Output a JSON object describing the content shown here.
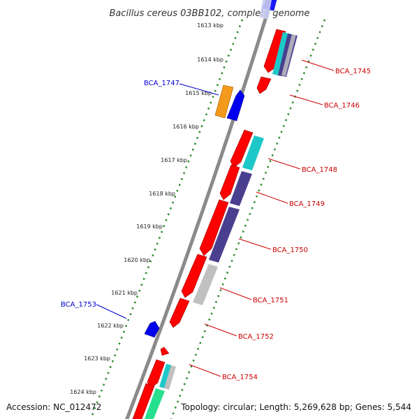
{
  "title": "Bacillus cereus 03BB102, complete genome",
  "footer": {
    "accession": "Accession: NC_012472",
    "summary": "Topology: circular; Length: 5,269,628 bp; Genes: 5,544"
  },
  "kbp_ticks": [
    "1613 kbp",
    "1614 kbp",
    "1615 kbp",
    "1616 kbp",
    "1617 kbp",
    "1618 kbp",
    "1619 kbp",
    "1620 kbp",
    "1621 kbp",
    "1622 kbp",
    "1623 kbp",
    "1624 kbp"
  ],
  "forward_labels": [
    "BCA_1745",
    "BCA_1746",
    "BCA_1748",
    "BCA_1749",
    "BCA_1750",
    "BCA_1751",
    "BCA_1752",
    "BCA_1754"
  ],
  "reverse_labels": [
    "BCA_1747",
    "BCA_1753"
  ],
  "colors": {
    "backbone": "#8a8a8a",
    "cds": "#ff0000",
    "forward_label": "#cc0000",
    "reverse_label": "#0000cc",
    "reverse_gene": "#0000ee",
    "orange_gene": "#f39a1d",
    "cyan_gene": "#1fc8c8",
    "purple_gene": "#4a3f8f",
    "gray_gene": "#c0c0c0",
    "green_gene": "#27e08f",
    "tick_dots": "#2e8b2e"
  }
}
